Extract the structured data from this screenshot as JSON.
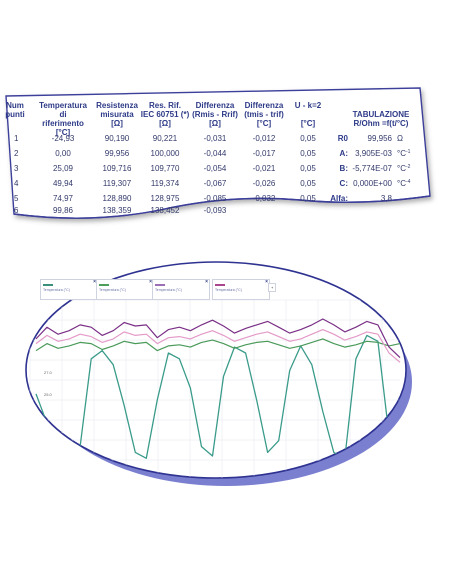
{
  "table": {
    "headers": [
      {
        "line1": "Num",
        "line2": "punti",
        "line3": ""
      },
      {
        "line1": "Temperatura",
        "line2": "di riferimento",
        "line3": "[°C]"
      },
      {
        "line1": "Resistenza",
        "line2": "misurata",
        "line3": "[Ω]"
      },
      {
        "line1": "Res. Rif.",
        "line2": "IEC 60751 (*)",
        "line3": "[Ω]"
      },
      {
        "line1": "Differenza",
        "line2": "(Rmis - Rrif)",
        "line3": "[Ω]"
      },
      {
        "line1": "Differenza",
        "line2": "(tmis - trif)",
        "line3": "[°C]"
      },
      {
        "line1": "U - k=2",
        "line2": "",
        "line3": "[°C]"
      }
    ],
    "rows": [
      [
        "1",
        "-24,93",
        "90,190",
        "90,221",
        "-0,031",
        "-0,012",
        "0,05"
      ],
      [
        "2",
        "0,00",
        "99,956",
        "100,000",
        "-0,044",
        "-0,017",
        "0,05"
      ],
      [
        "3",
        "25,09",
        "109,716",
        "109,770",
        "-0,054",
        "-0,021",
        "0,05"
      ],
      [
        "4",
        "49,94",
        "119,307",
        "119,374",
        "-0,067",
        "-0,026",
        "0,05"
      ],
      [
        "5",
        "74,97",
        "128,890",
        "128,975",
        "-0,085",
        "-0,032",
        "0,05"
      ],
      [
        "6",
        "99,86",
        "138,359",
        "138,452",
        "-0,093",
        "",
        ""
      ]
    ]
  },
  "tabulazione": {
    "title_line1": "TABULAZIONE",
    "title_line2": "R/Ohm =f(t/°C)",
    "rows": [
      {
        "label": "R0",
        "value": "99,956",
        "unit": "Ω",
        "sup": ""
      },
      {
        "label": "A:",
        "value": "3,905E-03",
        "unit": "°C",
        "sup": "-1"
      },
      {
        "label": "B:",
        "value": "-5,774E-07",
        "unit": "°C",
        "sup": "-2"
      },
      {
        "label": "C:",
        "value": "0,000E+00",
        "unit": "°C",
        "sup": "-4"
      },
      {
        "label": "Alfa:",
        "value": "3,8",
        "unit": "",
        "sup": ""
      }
    ]
  },
  "chart": {
    "legend": [
      {
        "text": "Temperatura (°C)",
        "color": "#3a8f7d"
      },
      {
        "text": "Temperatura (°C)",
        "color": "#4c9e5b"
      },
      {
        "text": "Temperatura (°C)",
        "color": "#9b6fb5"
      },
      {
        "text": "Temperatura (°C)",
        "color": "#a8468f"
      }
    ],
    "legend_close": "×",
    "add_label": "+",
    "y_ticks": [
      "27.0",
      "25.0"
    ],
    "x_ticks": [
      "",
      "",
      "",
      "",
      "",
      "",
      "",
      ""
    ],
    "colors": {
      "teal": "#3a9b8a",
      "green": "#4a9a5a",
      "pink": "#e49ac8",
      "purple": "#7a2f86",
      "frame": "#5a5fb0",
      "shadow": "#6b70c4"
    }
  },
  "chart_data": {
    "type": "line",
    "title": "",
    "xlabel": "",
    "ylabel": "",
    "series": [
      {
        "values": [
          22.5,
          20.0,
          17.5,
          17.0,
          18.0,
          25.5,
          26.2,
          25.0,
          21.5,
          17.5,
          17.0,
          22.0,
          26.0,
          25.5,
          23.0,
          18.0,
          17.2,
          24.0,
          26.5,
          26.0,
          22.0,
          17.5,
          18.5,
          24.5,
          26.6,
          25.0,
          21.0,
          17.5,
          17.0,
          25.5,
          27.5,
          27.0,
          19.0,
          18.5
        ]
      },
      {
        "values": [
          26.2,
          26.8,
          26.4,
          26.6,
          26.9,
          26.8,
          26.3,
          26.6,
          27.0,
          26.8,
          26.9,
          26.2,
          26.6,
          26.7,
          26.5,
          26.9,
          27.1,
          26.8,
          26.4,
          26.7,
          26.9,
          27.0,
          26.7,
          26.4,
          26.6,
          26.9,
          27.2,
          26.8,
          26.5,
          26.7,
          27.0,
          26.9,
          26.6,
          26.8
        ]
      },
      {
        "values": [
          26.8,
          27.5,
          27.0,
          27.2,
          27.6,
          27.4,
          26.9,
          27.2,
          27.8,
          27.5,
          27.6,
          26.8,
          27.3,
          27.4,
          27.2,
          27.6,
          27.9,
          27.5,
          27.0,
          27.3,
          27.6,
          27.8,
          27.4,
          27.0,
          27.2,
          27.6,
          28.0,
          27.6,
          27.1,
          27.4,
          27.8,
          27.6,
          26.0,
          25.2
        ]
      },
      {
        "values": [
          27.2,
          28.2,
          27.6,
          27.9,
          28.4,
          28.2,
          27.5,
          27.9,
          28.6,
          28.3,
          28.4,
          27.3,
          28.0,
          28.2,
          27.9,
          28.4,
          28.8,
          28.3,
          27.7,
          28.1,
          28.4,
          28.7,
          28.2,
          27.7,
          28.0,
          28.4,
          28.9,
          28.4,
          27.8,
          28.2,
          28.7,
          28.4,
          26.5,
          25.6
        ]
      }
    ]
  }
}
